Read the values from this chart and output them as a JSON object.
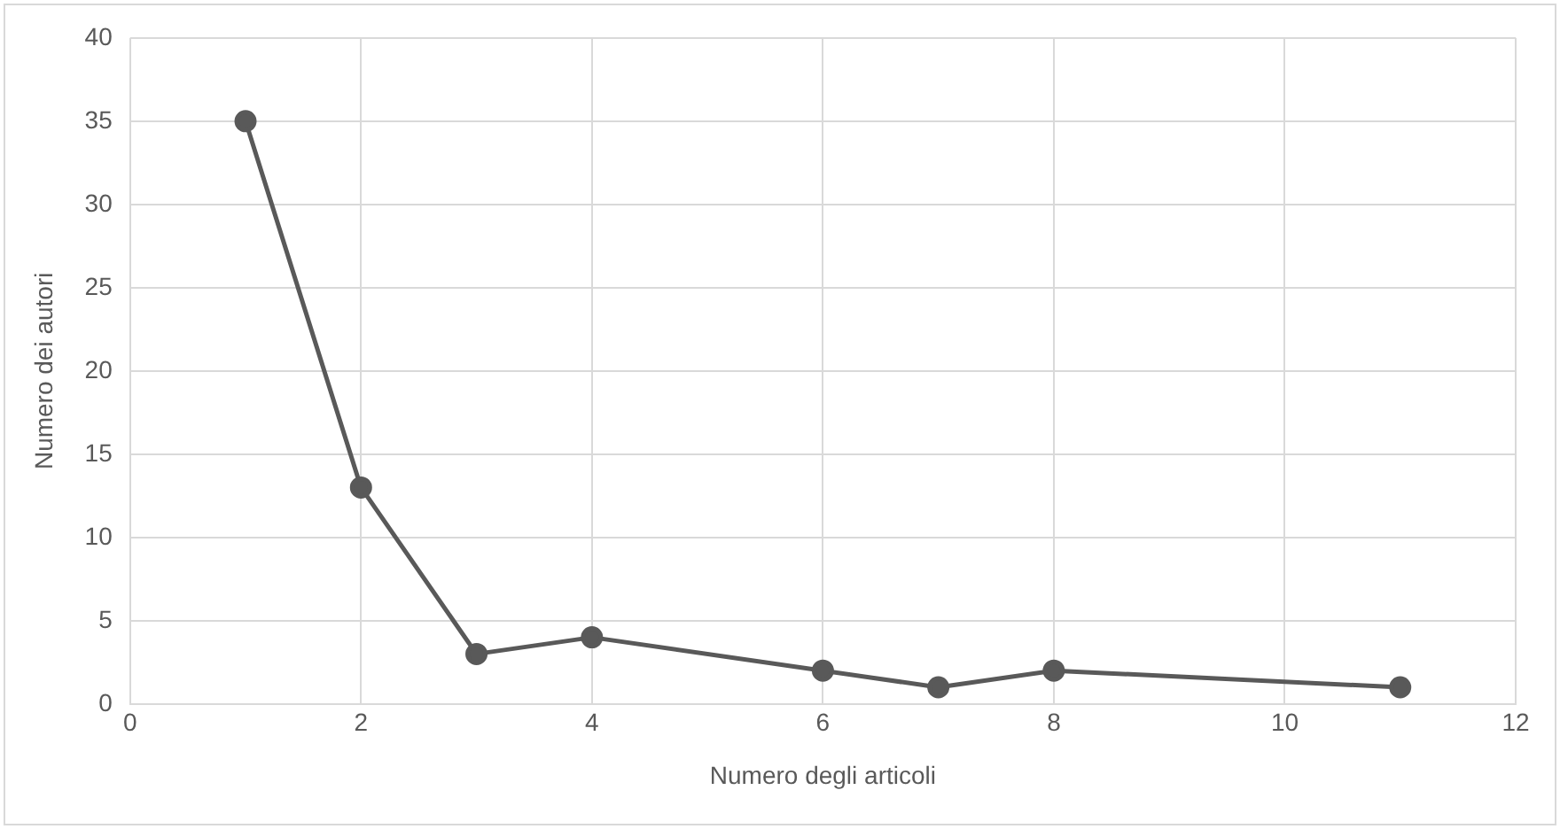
{
  "chart_data": {
    "type": "line",
    "xlabel": "Numero degli articoli",
    "ylabel": "Numero dei autori",
    "x": [
      1,
      2,
      3,
      4,
      6,
      7,
      8,
      11
    ],
    "series": [
      {
        "color": "#595959",
        "values": [
          35,
          13,
          3,
          4,
          2,
          1,
          2,
          1
        ]
      }
    ],
    "xlim": [
      0,
      12
    ],
    "xticks": [
      0,
      2,
      4,
      6,
      8,
      10,
      12
    ],
    "ylim": [
      0,
      40
    ],
    "yticks": [
      0,
      5,
      10,
      15,
      20,
      25,
      30,
      35,
      40
    ],
    "grid": true,
    "legend": false,
    "marker": "circle",
    "line_style": "solid"
  }
}
